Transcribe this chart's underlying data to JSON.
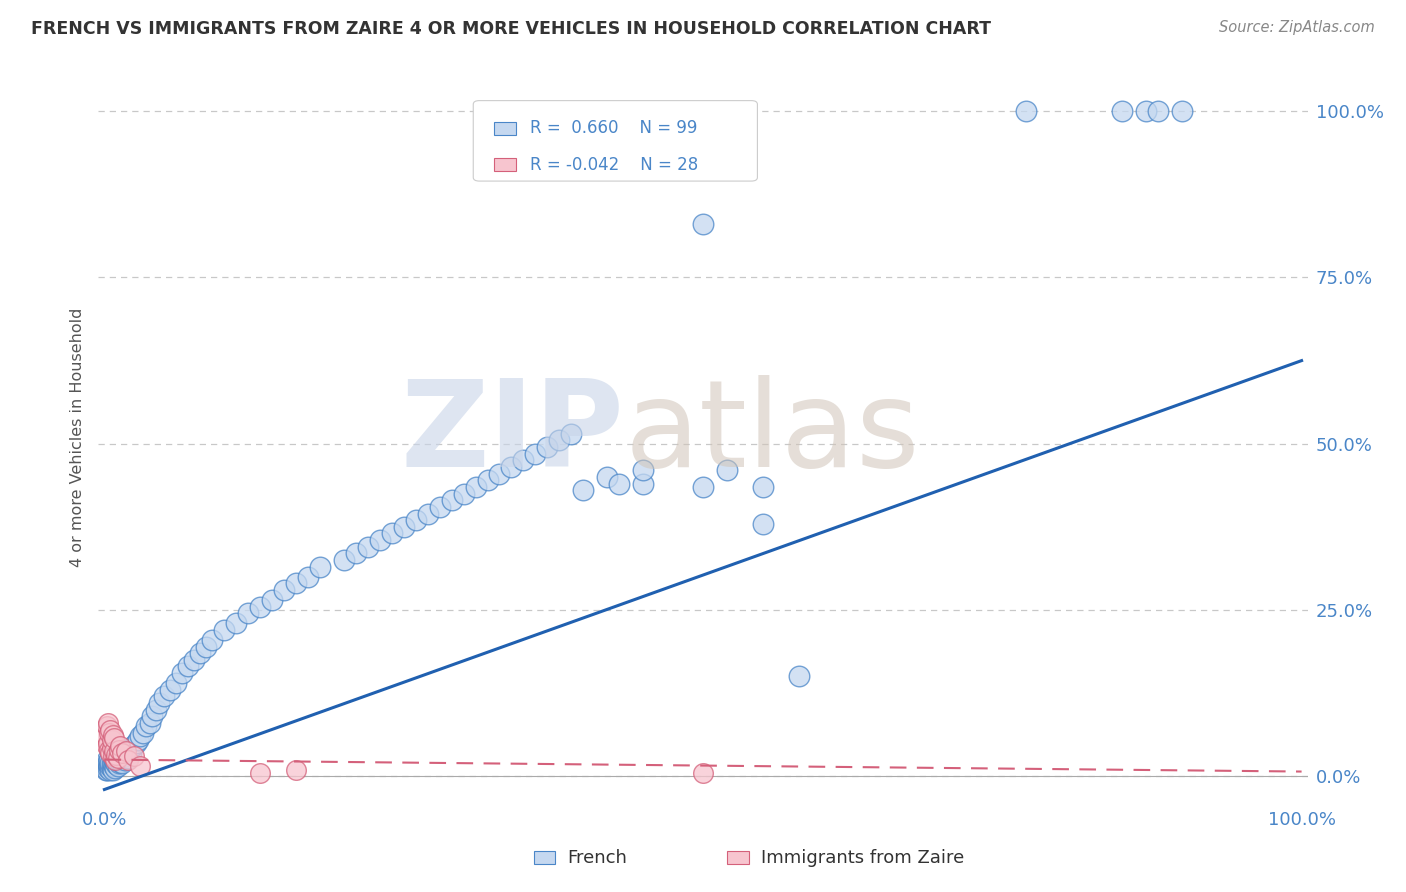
{
  "title": "FRENCH VS IMMIGRANTS FROM ZAIRE 4 OR MORE VEHICLES IN HOUSEHOLD CORRELATION CHART",
  "source_text": "Source: ZipAtlas.com",
  "ylabel": "4 or more Vehicles in Household",
  "yticks": [
    "0.0%",
    "25.0%",
    "50.0%",
    "75.0%",
    "100.0%"
  ],
  "ytick_vals": [
    0.0,
    0.25,
    0.5,
    0.75,
    1.0
  ],
  "legend_french_r": "R =  0.660",
  "legend_french_n": "N = 99",
  "legend_zaire_r": "R = -0.042",
  "legend_zaire_n": "N = 28",
  "french_fill": "#c5d8f0",
  "french_edge": "#4a86c8",
  "zaire_fill": "#f7c5cf",
  "zaire_edge": "#d4607a",
  "french_line": "#2060b0",
  "zaire_line": "#d4607a",
  "grid_color": "#c8c8c8",
  "text_color": "#4a86c8",
  "title_color": "#333333",
  "background": "#ffffff",
  "french_x": [
    0.001,
    0.001,
    0.002,
    0.002,
    0.002,
    0.003,
    0.003,
    0.003,
    0.004,
    0.004,
    0.005,
    0.005,
    0.005,
    0.006,
    0.006,
    0.007,
    0.007,
    0.008,
    0.008,
    0.009,
    0.009,
    0.01,
    0.01,
    0.011,
    0.012,
    0.013,
    0.014,
    0.015,
    0.016,
    0.017,
    0.018,
    0.019,
    0.02,
    0.021,
    0.022,
    0.024,
    0.026,
    0.028,
    0.03,
    0.032,
    0.035,
    0.038,
    0.04,
    0.043,
    0.046,
    0.05,
    0.055,
    0.06,
    0.065,
    0.07,
    0.075,
    0.08,
    0.085,
    0.09,
    0.1,
    0.11,
    0.12,
    0.13,
    0.14,
    0.15,
    0.16,
    0.17,
    0.18,
    0.2,
    0.21,
    0.22,
    0.23,
    0.24,
    0.25,
    0.26,
    0.27,
    0.28,
    0.29,
    0.3,
    0.31,
    0.32,
    0.33,
    0.34,
    0.35,
    0.36,
    0.37,
    0.38,
    0.39,
    0.4,
    0.42,
    0.45,
    0.5,
    0.52,
    0.55,
    0.58,
    0.77,
    0.85,
    0.87,
    0.88,
    0.9,
    0.45,
    0.43,
    0.5,
    0.55
  ],
  "french_y": [
    0.01,
    0.015,
    0.01,
    0.02,
    0.025,
    0.012,
    0.018,
    0.022,
    0.015,
    0.025,
    0.01,
    0.015,
    0.02,
    0.012,
    0.018,
    0.01,
    0.02,
    0.015,
    0.025,
    0.012,
    0.022,
    0.018,
    0.028,
    0.015,
    0.02,
    0.022,
    0.025,
    0.02,
    0.03,
    0.025,
    0.03,
    0.035,
    0.028,
    0.04,
    0.035,
    0.045,
    0.05,
    0.055,
    0.06,
    0.065,
    0.075,
    0.08,
    0.09,
    0.1,
    0.11,
    0.12,
    0.13,
    0.14,
    0.155,
    0.165,
    0.175,
    0.185,
    0.195,
    0.205,
    0.22,
    0.23,
    0.245,
    0.255,
    0.265,
    0.28,
    0.29,
    0.3,
    0.315,
    0.325,
    0.335,
    0.345,
    0.355,
    0.365,
    0.375,
    0.385,
    0.395,
    0.405,
    0.415,
    0.425,
    0.435,
    0.445,
    0.455,
    0.465,
    0.475,
    0.485,
    0.495,
    0.505,
    0.515,
    0.43,
    0.45,
    0.44,
    0.435,
    0.46,
    0.38,
    0.15,
    1.0,
    1.0,
    1.0,
    1.0,
    1.0,
    0.46,
    0.44,
    0.83,
    0.435
  ],
  "zaire_x": [
    0.001,
    0.002,
    0.002,
    0.003,
    0.003,
    0.004,
    0.004,
    0.005,
    0.005,
    0.006,
    0.006,
    0.007,
    0.007,
    0.008,
    0.008,
    0.009,
    0.01,
    0.011,
    0.012,
    0.013,
    0.015,
    0.018,
    0.02,
    0.025,
    0.03,
    0.13,
    0.16,
    0.5
  ],
  "zaire_y": [
    0.06,
    0.045,
    0.075,
    0.05,
    0.08,
    0.04,
    0.065,
    0.035,
    0.07,
    0.042,
    0.055,
    0.03,
    0.062,
    0.038,
    0.058,
    0.025,
    0.032,
    0.028,
    0.04,
    0.045,
    0.035,
    0.038,
    0.025,
    0.03,
    0.015,
    0.005,
    0.01,
    0.005
  ],
  "french_slope": 0.645,
  "french_intercept": -0.02,
  "zaire_slope": -0.018,
  "zaire_intercept": 0.025
}
